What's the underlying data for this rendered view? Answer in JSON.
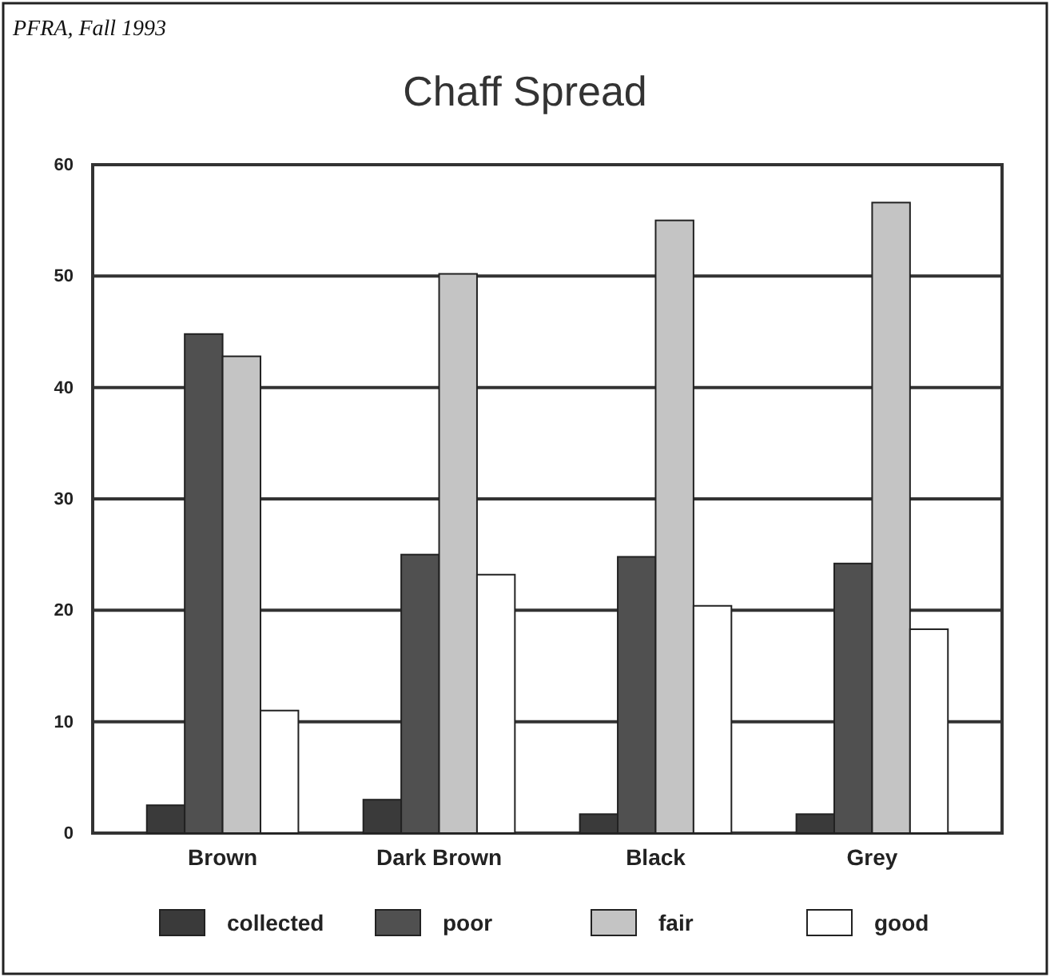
{
  "chart_data": {
    "type": "bar",
    "title": "Chaff Spread",
    "annotations": [
      "PFRA, Fall 1993"
    ],
    "categories": [
      "Brown",
      "Dark Brown",
      "Black",
      "Grey"
    ],
    "series": [
      {
        "name": "collected",
        "color": "#3a3a3a",
        "values": [
          2.5,
          3,
          1.7,
          1.7
        ]
      },
      {
        "name": "poor",
        "color": "#505050",
        "values": [
          44.8,
          25,
          24.8,
          24.2
        ]
      },
      {
        "name": "fair",
        "color": "#c4c4c4",
        "values": [
          42.8,
          50.2,
          55,
          56.6
        ]
      },
      {
        "name": "good",
        "color": "#ffffff",
        "values": [
          11,
          23.2,
          20.4,
          18.3
        ]
      }
    ],
    "ylim": [
      0,
      60
    ],
    "yticks": [
      0,
      10,
      20,
      30,
      40,
      50,
      60
    ],
    "grid": "y",
    "legend": "bottom"
  }
}
